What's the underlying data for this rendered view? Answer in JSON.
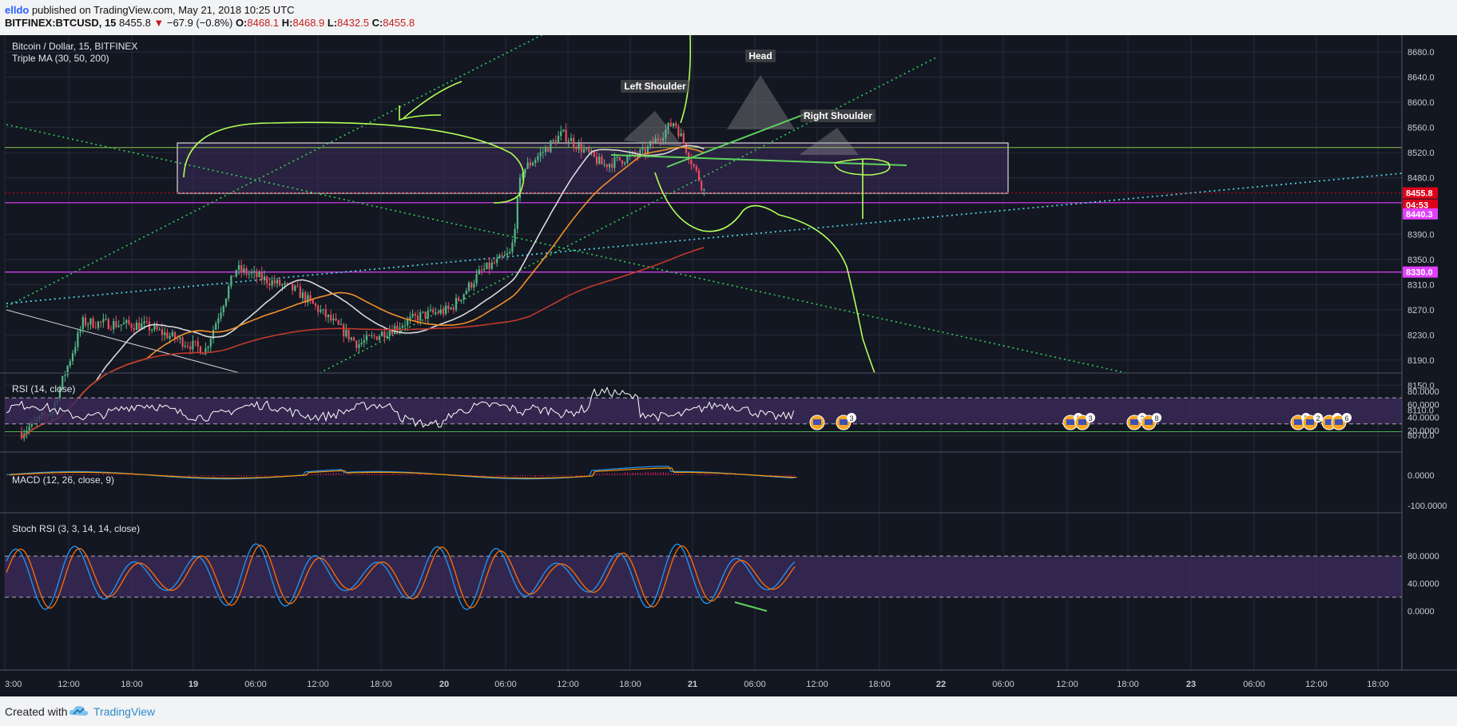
{
  "header": {
    "user": "elldo",
    "published": " published on TradingView.com, May 21, 2018 10:25 UTC",
    "symbol": "BITFINEX:BTCUSD, 15",
    "last": "8455.8",
    "change": "−67.9 (−0.8%)",
    "o_label": "O:",
    "o_val": "8468.1",
    "h_label": "H:",
    "h_val": "8468.9",
    "l_label": "L:",
    "l_val": "8432.5",
    "c_label": "C:",
    "c_val": "8455.8"
  },
  "legend": {
    "pair": "Bitcoin / Dollar, 15, BITFINEX",
    "ma": "Triple MA (30, 50, 200)"
  },
  "price_axis": {
    "ticks": [
      "8680.0",
      "8640.0",
      "8600.0",
      "8560.0",
      "8520.0",
      "8480.0",
      "8390.0",
      "8350.0",
      "8310.0",
      "8270.0",
      "8230.0",
      "8190.0",
      "8150.0",
      "8110.0",
      "8070.0"
    ]
  },
  "price_labels": [
    {
      "text": "8455.8",
      "color": "#e0001a"
    },
    {
      "text": "04:53",
      "color": "#e0001a"
    },
    {
      "text": "8440.3",
      "color": "#e040fb"
    },
    {
      "text": "8330.0",
      "color": "#e040fb"
    }
  ],
  "annotations": {
    "head": "Head",
    "left_shoulder": "Left Shoulder",
    "right_shoulder": "Right Shoulder"
  },
  "events": [
    "",
    "3",
    "2",
    "3",
    "3",
    "8",
    "5",
    "2",
    "3",
    "6"
  ],
  "panes": {
    "rsi": {
      "title": "RSI (14, close)",
      "ticks": [
        "80.0000",
        "60.0000",
        "40.0000",
        "20.0000"
      ]
    },
    "macd": {
      "title": "MACD (12, 26, close, 9)",
      "ticks": [
        "0.0000",
        "-100.0000"
      ]
    },
    "stoch": {
      "title": "Stoch RSI (3, 3, 14, 14, close)",
      "ticks": [
        "80.0000",
        "40.0000",
        "0.0000"
      ]
    }
  },
  "time_axis": [
    "3:00",
    "12:00",
    "18:00",
    "19",
    "06:00",
    "12:00",
    "18:00",
    "20",
    "06:00",
    "12:00",
    "18:00",
    "21",
    "06:00",
    "12:00",
    "18:00",
    "22",
    "06:00",
    "12:00",
    "18:00",
    "23",
    "06:00",
    "12:00",
    "18:00"
  ],
  "footer": {
    "created": "Created with",
    "brand": "TradingView"
  },
  "colors": {
    "bg": "#131722",
    "up": "#53b987",
    "down": "#eb4d5c",
    "ma30": "#d9d9d9",
    "ma50": "#f0902a",
    "ma200": "#c0392b",
    "rsi": "#ffffff",
    "macd": "#2196f3",
    "signal": "#ff9800",
    "stochK": "#2196f3",
    "stochD": "#ff6d00",
    "band": "#3c2a5a"
  },
  "chart_data": {
    "type": "candlestick",
    "symbol": "BITFINEX:BTCUSD",
    "interval": "15",
    "ohlc_last": {
      "open": 8468.1,
      "high": 8468.9,
      "low": 8432.5,
      "close": 8455.8
    },
    "close_path": [
      {
        "t": "2018-05-18T15:00",
        "v": 8075
      },
      {
        "t": "2018-05-18T18:00",
        "v": 8110
      },
      {
        "t": "2018-05-18T21:00",
        "v": 8250
      },
      {
        "t": "2018-05-19T03:00",
        "v": 8245
      },
      {
        "t": "2018-05-19T09:00",
        "v": 8205
      },
      {
        "t": "2018-05-19T12:00",
        "v": 8335
      },
      {
        "t": "2018-05-19T18:00",
        "v": 8300
      },
      {
        "t": "2018-05-20T00:00",
        "v": 8215
      },
      {
        "t": "2018-05-20T06:00",
        "v": 8260
      },
      {
        "t": "2018-05-20T09:00",
        "v": 8270
      },
      {
        "t": "2018-05-20T12:00",
        "v": 8330
      },
      {
        "t": "2018-05-20T15:00",
        "v": 8360
      },
      {
        "t": "2018-05-20T16:00",
        "v": 8490
      },
      {
        "t": "2018-05-20T20:00",
        "v": 8550
      },
      {
        "t": "2018-05-21T00:00",
        "v": 8500
      },
      {
        "t": "2018-05-21T04:00",
        "v": 8520
      },
      {
        "t": "2018-05-21T07:00",
        "v": 8570
      },
      {
        "t": "2018-05-21T10:00",
        "v": 8456
      }
    ],
    "horizontal_levels": [
      8528,
      8440.3,
      8330.0,
      8076
    ],
    "pattern": "head and shoulders",
    "rsi_bands": [
      70,
      30
    ],
    "stoch_bands": [
      80,
      20
    ],
    "ylim": [
      8040,
      8700
    ]
  }
}
